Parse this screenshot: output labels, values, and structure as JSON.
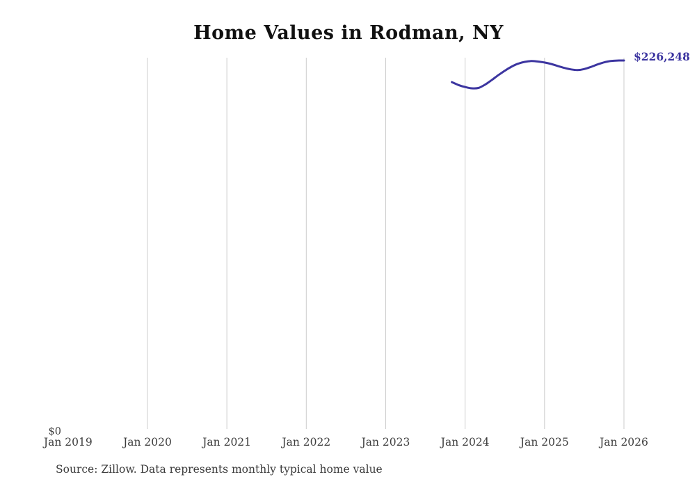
{
  "page": {
    "source_note": "Source: Zillow. Data represents monthly typical home value"
  },
  "chart_data": {
    "type": "line",
    "title": "Home Values in Rodman, NY",
    "xlabel": "",
    "ylabel": "",
    "x_tick_labels": [
      "Jan 2019",
      "Jan 2020",
      "Jan 2021",
      "Jan 2022",
      "Jan 2023",
      "Jan 2024",
      "Jan 2025",
      "Jan 2026"
    ],
    "y_tick_labels": [
      "$0"
    ],
    "ylim": [
      0,
      228000
    ],
    "grid": "vertical-yearly",
    "legend": "none",
    "line_color": "#3c35a0",
    "gridline_color": "#cccccc",
    "latest_value_label": "$226,248",
    "series": [
      {
        "name": "Monthly typical home value",
        "points": [
          {
            "date": "2023-11",
            "value": 213000
          },
          {
            "date": "2023-12",
            "value": 211200
          },
          {
            "date": "2024-01",
            "value": 210000
          },
          {
            "date": "2024-02",
            "value": 209200
          },
          {
            "date": "2024-03",
            "value": 209400
          },
          {
            "date": "2024-04",
            "value": 211400
          },
          {
            "date": "2024-05",
            "value": 214200
          },
          {
            "date": "2024-06",
            "value": 217200
          },
          {
            "date": "2024-07",
            "value": 220000
          },
          {
            "date": "2024-08",
            "value": 222400
          },
          {
            "date": "2024-09",
            "value": 224300
          },
          {
            "date": "2024-10",
            "value": 225400
          },
          {
            "date": "2024-11",
            "value": 225900
          },
          {
            "date": "2024-12",
            "value": 225600
          },
          {
            "date": "2025-01",
            "value": 225000
          },
          {
            "date": "2025-02",
            "value": 224100
          },
          {
            "date": "2025-03",
            "value": 222900
          },
          {
            "date": "2025-04",
            "value": 221700
          },
          {
            "date": "2025-05",
            "value": 220800
          },
          {
            "date": "2025-06",
            "value": 220400
          },
          {
            "date": "2025-07",
            "value": 221000
          },
          {
            "date": "2025-08",
            "value": 222300
          },
          {
            "date": "2025-09",
            "value": 223800
          },
          {
            "date": "2025-10",
            "value": 225100
          },
          {
            "date": "2025-11",
            "value": 225900
          },
          {
            "date": "2025-12",
            "value": 226200
          },
          {
            "date": "2026-01",
            "value": 226248
          }
        ]
      }
    ]
  }
}
